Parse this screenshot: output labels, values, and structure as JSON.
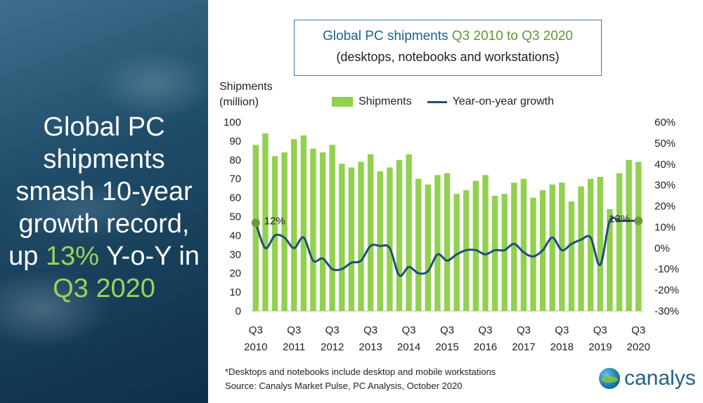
{
  "headline": {
    "line1": "Global PC",
    "line2": "shipments",
    "line3": "smash 10-year",
    "line4": "growth record,",
    "line5_pre": "up ",
    "line5_hl": "13%",
    "line5_post": " Y-o-Y in",
    "line6_hl": "Q3 2020"
  },
  "title": {
    "main": "Global PC shipments ",
    "main_hl": "Q3 2010 to Q3 2020",
    "sub": "(desktops, notebooks and workstations)"
  },
  "yaxis_title": {
    "line1": "Shipments",
    "line2": "(million)"
  },
  "legend": {
    "bars": "Shipments",
    "line": "Year-on-year growth"
  },
  "footnote": {
    "note": "*Desktops and notebooks include desktop and mobile workstations",
    "source": "Source: Canalys Market Pulse, PC Analysis, October 2020"
  },
  "logo": {
    "text": "canalys"
  },
  "colors": {
    "bars": "#92d050",
    "line": "#1f4e79",
    "marker": "#6e9a3c",
    "panel": "#1f4c68",
    "highlight": "#9cd35a"
  },
  "chart_data": {
    "type": "bar",
    "categories": [
      "Q3 2010",
      "Q4 2010",
      "Q1 2011",
      "Q2 2011",
      "Q3 2011",
      "Q4 2011",
      "Q1 2012",
      "Q2 2012",
      "Q3 2012",
      "Q4 2012",
      "Q1 2013",
      "Q2 2013",
      "Q3 2013",
      "Q4 2013",
      "Q1 2014",
      "Q2 2014",
      "Q3 2014",
      "Q4 2014",
      "Q1 2015",
      "Q2 2015",
      "Q3 2015",
      "Q4 2015",
      "Q1 2016",
      "Q2 2016",
      "Q3 2016",
      "Q4 2016",
      "Q1 2017",
      "Q2 2017",
      "Q3 2017",
      "Q4 2017",
      "Q1 2018",
      "Q2 2018",
      "Q3 2018",
      "Q4 2018",
      "Q1 2019",
      "Q2 2019",
      "Q3 2019",
      "Q4 2019",
      "Q1 2020",
      "Q2 2020",
      "Q3 2020"
    ],
    "x_tick_labels": [
      {
        "q": "Q3",
        "y": "2010",
        "index": 0
      },
      {
        "q": "Q3",
        "y": "2011",
        "index": 4
      },
      {
        "q": "Q3",
        "y": "2012",
        "index": 8
      },
      {
        "q": "Q3",
        "y": "2013",
        "index": 12
      },
      {
        "q": "Q3",
        "y": "2014",
        "index": 16
      },
      {
        "q": "Q3",
        "y": "2015",
        "index": 20
      },
      {
        "q": "Q3",
        "y": "2016",
        "index": 24
      },
      {
        "q": "Q3",
        "y": "2017",
        "index": 28
      },
      {
        "q": "Q3",
        "y": "2018",
        "index": 32
      },
      {
        "q": "Q3",
        "y": "2019",
        "index": 36
      },
      {
        "q": "Q3",
        "y": "2020",
        "index": 40
      }
    ],
    "series": [
      {
        "name": "Shipments",
        "type": "bar",
        "axis": "left",
        "values": [
          88,
          94,
          82,
          84,
          91,
          93,
          86,
          84,
          88,
          78,
          76,
          79,
          83,
          74,
          76,
          80,
          83,
          70,
          67,
          72,
          73,
          62,
          64,
          69,
          72,
          61,
          62,
          68,
          70,
          60,
          64,
          67,
          68,
          58,
          66,
          70,
          71,
          54,
          73,
          80,
          79
        ]
      },
      {
        "name": "Year-on-year growth",
        "type": "line",
        "axis": "right",
        "values": [
          12,
          0,
          6,
          5,
          0,
          5,
          -6,
          -5,
          -10,
          -10,
          -7,
          -6,
          1,
          1,
          0,
          -13,
          -9,
          -12,
          -11,
          -3,
          -6,
          -3,
          -1,
          -1,
          -3,
          -1,
          -1,
          2,
          -2,
          -4,
          -1,
          5,
          -1,
          2,
          4,
          5,
          -8,
          13,
          13,
          13,
          13
        ]
      }
    ],
    "annotations": [
      {
        "text": "12%",
        "category_index": 0
      },
      {
        "text": "13%",
        "category_index": 40
      }
    ],
    "ylim_left": [
      0,
      100
    ],
    "yticks_left": [
      "0",
      "10",
      "20",
      "30",
      "40",
      "50",
      "60",
      "70",
      "80",
      "90",
      "100"
    ],
    "ylim_right": [
      -30,
      60
    ],
    "yticks_right": [
      "-30%",
      "-20%",
      "-10%",
      "0%",
      "10%",
      "20%",
      "30%",
      "40%",
      "50%",
      "60%"
    ],
    "grid": false,
    "legend_position": "top"
  }
}
